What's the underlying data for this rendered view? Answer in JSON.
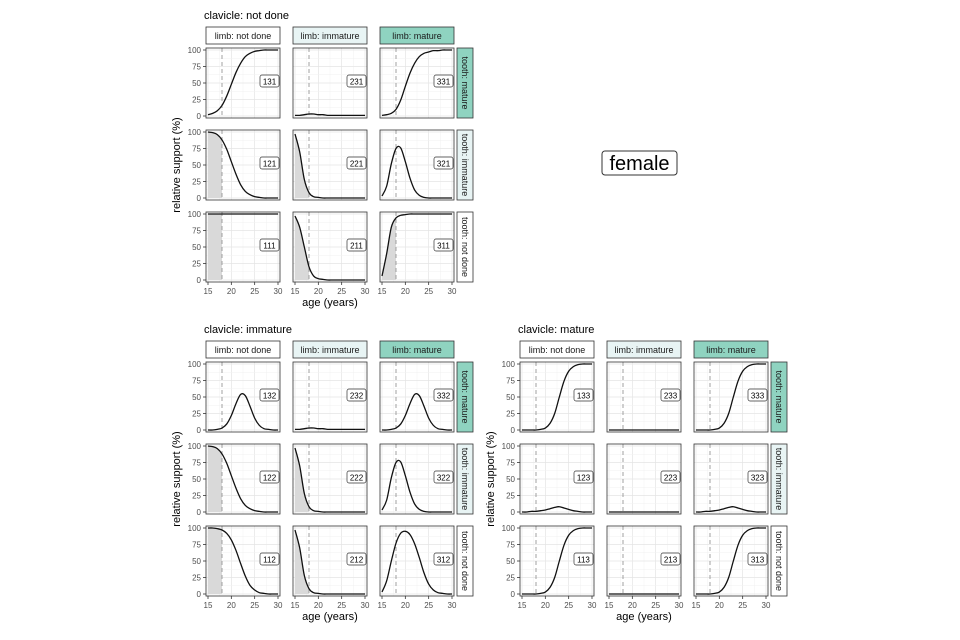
{
  "chart_data": {
    "type": "line",
    "corner_label": "female",
    "x_axis": {
      "label": "age (years)",
      "range": [
        15,
        30
      ],
      "ticks": [
        15,
        20,
        25,
        30
      ]
    },
    "y_axis": {
      "label": "relative support (%)",
      "range": [
        0,
        100
      ],
      "ticks": [
        0,
        25,
        50,
        75,
        100
      ]
    },
    "reference_line_age": 18,
    "grid": true,
    "x_samples": [
      15,
      16,
      17,
      18,
      19,
      20,
      21,
      22,
      23,
      24,
      25,
      26,
      27,
      28,
      29,
      30
    ],
    "col_strips": [
      {
        "label": "limb: not done",
        "color": "#ffffff"
      },
      {
        "label": "limb: immature",
        "color": "#e8f4f4"
      },
      {
        "label": "limb: mature",
        "color": "#8fd3c0"
      }
    ],
    "row_strips": [
      {
        "label": "tooth: mature",
        "color": "#8fd3c0"
      },
      {
        "label": "tooth: immature",
        "color": "#e8f4f4"
      },
      {
        "label": "tooth: not done",
        "color": "#ffffff"
      }
    ],
    "blocks": [
      {
        "title": "clavicle: not done",
        "panels": [
          {
            "code": "131",
            "shade": false,
            "y": [
              2,
              4,
              8,
              16,
              30,
              48,
              66,
              80,
              90,
              95,
              98,
              99,
              100,
              100,
              100,
              100
            ]
          },
          {
            "code": "231",
            "shade": false,
            "y": [
              1,
              1,
              2,
              3,
              3,
              2,
              2,
              1,
              1,
              1,
              1,
              1,
              1,
              1,
              1,
              1
            ]
          },
          {
            "code": "331",
            "shade": false,
            "y": [
              1,
              2,
              4,
              10,
              24,
              45,
              65,
              80,
              90,
              95,
              97,
              99,
              99,
              100,
              100,
              100
            ]
          },
          {
            "code": "121",
            "shade": true,
            "y": [
              100,
              99,
              96,
              88,
              74,
              55,
              36,
              20,
              10,
              5,
              2,
              1,
              0,
              0,
              0,
              0
            ]
          },
          {
            "code": "221",
            "shade": true,
            "y": [
              97,
              70,
              28,
              8,
              2,
              1,
              0,
              0,
              0,
              0,
              0,
              0,
              0,
              0,
              0,
              0
            ]
          },
          {
            "code": "321",
            "shade": false,
            "y": [
              3,
              18,
              52,
              75,
              76,
              55,
              30,
              12,
              4,
              1,
              0,
              0,
              0,
              0,
              0,
              0
            ]
          },
          {
            "code": "111",
            "shade": true,
            "y": [
              100,
              100,
              100,
              100,
              100,
              100,
              100,
              100,
              100,
              100,
              100,
              100,
              100,
              100,
              100,
              100
            ]
          },
          {
            "code": "211",
            "shade": true,
            "y": [
              97,
              80,
              50,
              20,
              6,
              2,
              1,
              0,
              0,
              0,
              0,
              0,
              0,
              0,
              0,
              0
            ]
          },
          {
            "code": "311",
            "shade": true,
            "y": [
              6,
              40,
              80,
              94,
              98,
              99,
              100,
              100,
              100,
              100,
              100,
              100,
              100,
              100,
              100,
              100
            ]
          }
        ]
      },
      {
        "title": "clavicle: immature",
        "panels": [
          {
            "code": "132",
            "shade": false,
            "y": [
              0,
              0,
              1,
              3,
              9,
              22,
              40,
              54,
              52,
              36,
              18,
              7,
              2,
              1,
              0,
              0
            ]
          },
          {
            "code": "232",
            "shade": false,
            "y": [
              1,
              1,
              2,
              3,
              3,
              2,
              2,
              1,
              1,
              1,
              1,
              1,
              1,
              1,
              1,
              1
            ]
          },
          {
            "code": "332",
            "shade": false,
            "y": [
              0,
              0,
              1,
              3,
              9,
              22,
              40,
              54,
              52,
              36,
              18,
              7,
              2,
              1,
              0,
              0
            ]
          },
          {
            "code": "122",
            "shade": true,
            "y": [
              100,
              99,
              96,
              88,
              74,
              55,
              36,
              20,
              10,
              5,
              2,
              1,
              0,
              0,
              0,
              0
            ]
          },
          {
            "code": "222",
            "shade": true,
            "y": [
              97,
              70,
              28,
              8,
              2,
              1,
              0,
              0,
              0,
              0,
              0,
              0,
              0,
              0,
              0,
              0
            ]
          },
          {
            "code": "322",
            "shade": false,
            "y": [
              3,
              18,
              52,
              75,
              76,
              55,
              30,
              12,
              4,
              1,
              0,
              0,
              0,
              0,
              0,
              0
            ]
          },
          {
            "code": "112",
            "shade": true,
            "y": [
              100,
              100,
              99,
              97,
              92,
              82,
              66,
              46,
              27,
              13,
              6,
              2,
              1,
              0,
              0,
              0
            ]
          },
          {
            "code": "212",
            "shade": true,
            "y": [
              97,
              70,
              28,
              8,
              2,
              1,
              0,
              0,
              0,
              0,
              0,
              0,
              0,
              0,
              0,
              0
            ]
          },
          {
            "code": "312",
            "shade": false,
            "y": [
              3,
              20,
              50,
              77,
              92,
              95,
              90,
              76,
              55,
              32,
              15,
              6,
              2,
              1,
              0,
              0
            ]
          }
        ]
      },
      {
        "title": "clavicle: mature",
        "panels": [
          {
            "code": "133",
            "shade": false,
            "y": [
              0,
              0,
              0,
              0,
              1,
              3,
              10,
              25,
              50,
              74,
              89,
              96,
              99,
              100,
              100,
              100
            ]
          },
          {
            "code": "233",
            "shade": false,
            "y": [
              0,
              0,
              0,
              0,
              0,
              0,
              0,
              0,
              0,
              0,
              0,
              0,
              0,
              0,
              0,
              0
            ]
          },
          {
            "code": "333",
            "shade": false,
            "y": [
              0,
              0,
              0,
              0,
              1,
              3,
              10,
              25,
              50,
              74,
              89,
              96,
              99,
              100,
              100,
              100
            ]
          },
          {
            "code": "123",
            "shade": false,
            "y": [
              0,
              0,
              1,
              1,
              2,
              3,
              5,
              7,
              8,
              6,
              4,
              2,
              1,
              0,
              0,
              0
            ]
          },
          {
            "code": "223",
            "shade": false,
            "y": [
              0,
              0,
              0,
              0,
              0,
              0,
              0,
              0,
              0,
              0,
              0,
              0,
              0,
              0,
              0,
              0
            ]
          },
          {
            "code": "323",
            "shade": false,
            "y": [
              0,
              0,
              1,
              1,
              2,
              3,
              5,
              7,
              8,
              6,
              4,
              2,
              1,
              0,
              0,
              0
            ]
          },
          {
            "code": "113",
            "shade": false,
            "y": [
              0,
              0,
              0,
              0,
              1,
              3,
              10,
              25,
              50,
              74,
              89,
              96,
              99,
              100,
              100,
              100
            ]
          },
          {
            "code": "213",
            "shade": false,
            "y": [
              0,
              0,
              0,
              0,
              0,
              0,
              0,
              0,
              0,
              0,
              0,
              0,
              0,
              0,
              0,
              0
            ]
          },
          {
            "code": "313",
            "shade": false,
            "y": [
              0,
              0,
              0,
              0,
              1,
              3,
              10,
              25,
              50,
              74,
              89,
              96,
              99,
              100,
              100,
              100
            ]
          }
        ]
      }
    ]
  }
}
